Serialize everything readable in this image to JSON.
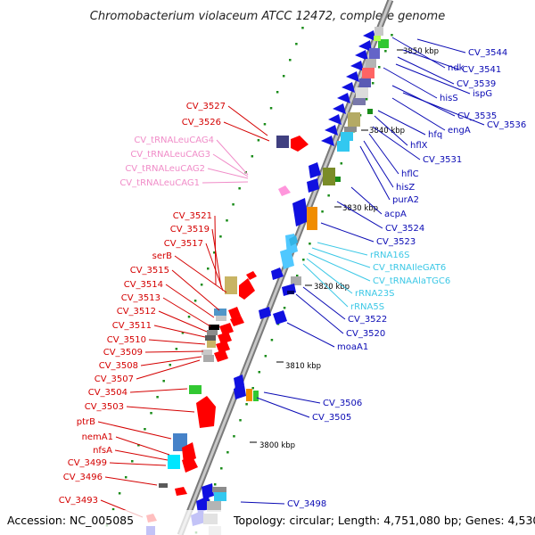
{
  "title": "Chromobacterium violaceum ATCC 12472, complete genome",
  "footer": {
    "accession": "Accession: NC_005085",
    "topology": "Topology: circular; Length: 4,751,080 bp; Genes: 4,530"
  },
  "colors": {
    "backbone": "#8c8c8c",
    "red_label": "#d40000",
    "blue_label": "#0a0ab4",
    "pink_label": "#f08cc8",
    "cyan_label": "#3cc8e6",
    "tick_green": "#1a8c1a"
  },
  "scale_ticks": [
    {
      "label": "3850 kbp"
    },
    {
      "label": "3840 kbp"
    },
    {
      "label": "3830 kbp"
    },
    {
      "label": "3820 kbp"
    },
    {
      "label": "3810 kbp"
    },
    {
      "label": "3800 kbp"
    }
  ],
  "labels_left_red": [
    "CV_3527",
    "CV_3526",
    "CV_3521",
    "CV_3519",
    "CV_3517",
    "serB",
    "CV_3515",
    "CV_3514",
    "CV_3513",
    "CV_3512",
    "CV_3511",
    "CV_3510",
    "CV_3509",
    "CV_3508",
    "CV_3507",
    "CV_3504",
    "CV_3503",
    "ptrB",
    "nemA1",
    "nfsA",
    "CV_3499",
    "CV_3496",
    "CV_3493"
  ],
  "labels_left_pink": [
    "CV_tRNALeuCAG4",
    "CV_tRNALeuCAG3",
    "CV_tRNALeuCAG2",
    "CV_tRNALeuCAG1"
  ],
  "labels_right_blue": [
    "CV_3544",
    "ndk",
    "CV_3541",
    "CV_3539",
    "ispG",
    "hisS",
    "CV_3535",
    "CV_3536",
    "engA",
    "hfq",
    "hflX",
    "CV_3531",
    "hflC",
    "hisZ",
    "purA2",
    "acpA",
    "CV_3524",
    "CV_3523",
    "CV_3522",
    "CV_3520",
    "moaA1",
    "CV_3506",
    "CV_3505",
    "CV_3498"
  ],
  "labels_right_cyan": [
    "rRNA16S",
    "CV_tRNAIleGAT6",
    "CV_tRNAAlaTGC6",
    "rRNA23S",
    "rRNA5S"
  ]
}
